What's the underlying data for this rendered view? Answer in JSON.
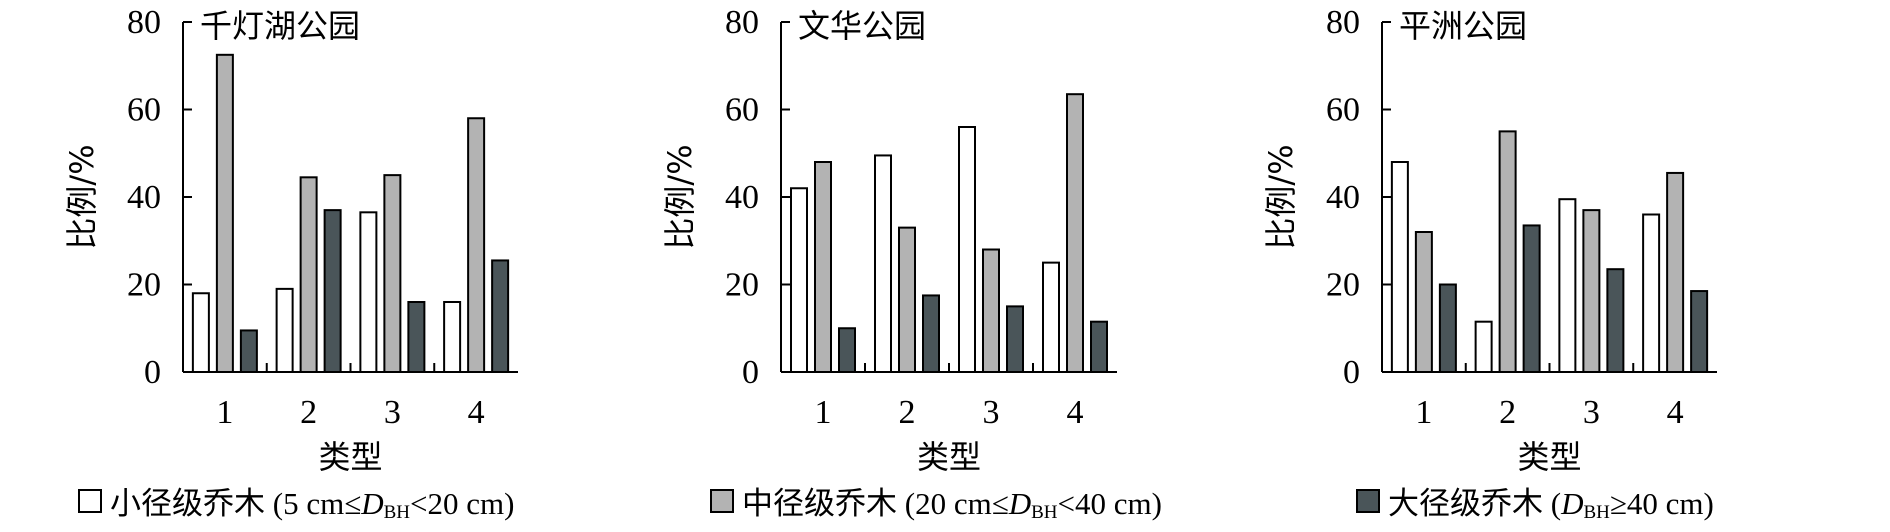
{
  "chart_data": [
    {
      "type": "bar",
      "title": "千灯湖公园",
      "xlabel": "类型",
      "ylabel": "比例/%",
      "ylim": [
        0,
        80
      ],
      "yticks": [
        0,
        20,
        40,
        60,
        80
      ],
      "categories": [
        "1",
        "2",
        "3",
        "4"
      ],
      "series": [
        {
          "values": [
            18,
            19,
            36.5,
            16
          ]
        },
        {
          "values": [
            72.5,
            44.5,
            45,
            58
          ]
        },
        {
          "values": [
            9.5,
            37,
            16,
            25.5
          ]
        }
      ]
    },
    {
      "type": "bar",
      "title": "文华公园",
      "xlabel": "类型",
      "ylabel": "比例/%",
      "ylim": [
        0,
        80
      ],
      "yticks": [
        0,
        20,
        40,
        60,
        80
      ],
      "categories": [
        "1",
        "2",
        "3",
        "4"
      ],
      "series": [
        {
          "values": [
            42,
            49.5,
            56,
            25
          ]
        },
        {
          "values": [
            48,
            33,
            28,
            63.5
          ]
        },
        {
          "values": [
            10,
            17.5,
            15,
            11.5
          ]
        }
      ]
    },
    {
      "type": "bar",
      "title": "平洲公园",
      "xlabel": "类型",
      "ylabel": "比例/%",
      "ylim": [
        0,
        80
      ],
      "yticks": [
        0,
        20,
        40,
        60,
        80
      ],
      "categories": [
        "1",
        "2",
        "3",
        "4"
      ],
      "series": [
        {
          "values": [
            48,
            11.5,
            39.5,
            36
          ]
        },
        {
          "values": [
            32,
            55,
            37,
            45.5
          ]
        },
        {
          "values": [
            20,
            33.5,
            23.5,
            18.5
          ]
        }
      ]
    }
  ],
  "legend": [
    {
      "color": "#ffffff",
      "cjk": "小径级乔木",
      "pre": " (5 cm≤",
      "sym": "D",
      "sub": "BH",
      "post": "<20 cm)"
    },
    {
      "color": "#b3b3b3",
      "cjk": "中径级乔木",
      "pre": " (20 cm≤",
      "sym": "D",
      "sub": "BH",
      "post": "<40 cm)"
    },
    {
      "color": "#4a5559",
      "cjk": "大径级乔木",
      "pre": " (",
      "sym": "D",
      "sub": "BH",
      "post": "≥40 cm)"
    }
  ],
  "legend_position": "bottom"
}
